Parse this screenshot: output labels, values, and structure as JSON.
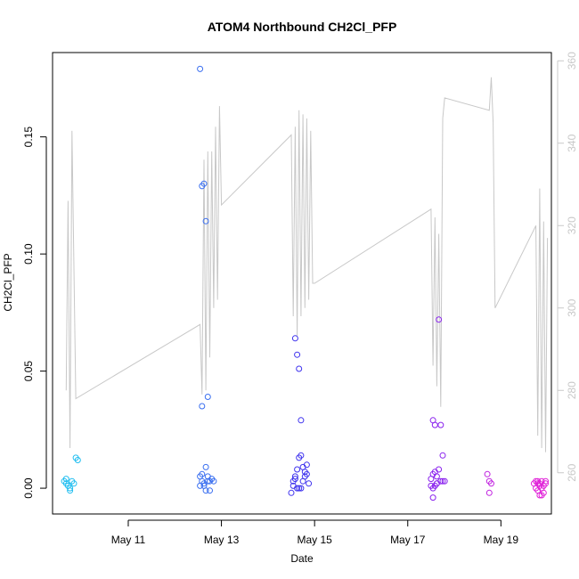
{
  "chart_data": {
    "type": "scatter",
    "title": "ATOM4 Northbound CH2Cl_PFP",
    "xlabel": "Date",
    "ylabel": "CH2Cl_PFP",
    "xlim": [
      "2016-05-09 09:00",
      "2016-05-20 02:00"
    ],
    "ylim": [
      -0.011,
      0.186
    ],
    "y2lim": [
      250,
      362
    ],
    "grid": false,
    "legend": "none",
    "x_ticks": [
      {
        "date": "2016-05-11 00:00",
        "label": "May 11"
      },
      {
        "date": "2016-05-13 00:00",
        "label": "May 13"
      },
      {
        "date": "2016-05-15 00:00",
        "label": "May 15"
      },
      {
        "date": "2016-05-17 00:00",
        "label": "May 17"
      },
      {
        "date": "2016-05-19 00:00",
        "label": "May 19"
      }
    ],
    "y_ticks": [
      {
        "value": 0.0,
        "label": "0.00"
      },
      {
        "value": 0.05,
        "label": "0.05"
      },
      {
        "value": 0.1,
        "label": "0.10"
      },
      {
        "value": 0.15,
        "label": "0.15"
      }
    ],
    "y2_ticks": [
      {
        "value": 260,
        "label": "260"
      },
      {
        "value": 280,
        "label": "280"
      },
      {
        "value": 300,
        "label": "300"
      },
      {
        "value": 320,
        "label": "320"
      },
      {
        "value": 340,
        "label": "340"
      },
      {
        "value": 360,
        "label": "360"
      }
    ],
    "colors": {
      "secondary_line": "#c8c8c8",
      "right_axis": "#c8c8c8",
      "color_scale": [
        "#1ebdf0",
        "#3a6ff0",
        "#3f33ee",
        "#8a22ee",
        "#c020e0",
        "#e020d8"
      ]
    },
    "secondary_series": {
      "axis": "right",
      "points": [
        [
          "2016-05-09 16:00",
          280
        ],
        [
          "2016-05-09 17:00",
          326
        ],
        [
          "2016-05-09 18:00",
          266
        ],
        [
          "2016-05-09 19:00",
          343
        ],
        [
          "2016-05-09 21:00",
          278
        ],
        [
          "2016-05-12 13:00",
          296
        ],
        [
          "2016-05-12 14:00",
          279
        ],
        [
          "2016-05-12 15:00",
          336
        ],
        [
          "2016-05-12 16:00",
          280
        ],
        [
          "2016-05-12 17:00",
          338
        ],
        [
          "2016-05-12 18:00",
          288
        ],
        [
          "2016-05-12 19:00",
          338
        ],
        [
          "2016-05-12 20:00",
          300
        ],
        [
          "2016-05-12 21:00",
          344
        ],
        [
          "2016-05-12 22:00",
          302
        ],
        [
          "2016-05-12 23:00",
          349
        ],
        [
          "2016-05-13 00:00",
          325
        ],
        [
          "2016-05-14 12:00",
          342
        ],
        [
          "2016-05-14 13:00",
          298
        ],
        [
          "2016-05-14 14:00",
          344
        ],
        [
          "2016-05-14 15:00",
          293
        ],
        [
          "2016-05-14 16:00",
          348
        ],
        [
          "2016-05-14 17:00",
          298
        ],
        [
          "2016-05-14 18:00",
          347
        ],
        [
          "2016-05-14 19:00",
          300
        ],
        [
          "2016-05-14 20:00",
          346
        ],
        [
          "2016-05-14 21:00",
          302
        ],
        [
          "2016-05-14 22:00",
          343
        ],
        [
          "2016-05-14 23:00",
          306
        ],
        [
          "2016-05-15 00:00",
          306
        ],
        [
          "2016-05-17 12:00",
          324
        ],
        [
          "2016-05-17 13:00",
          286
        ],
        [
          "2016-05-17 14:00",
          322
        ],
        [
          "2016-05-17 15:00",
          281
        ],
        [
          "2016-05-17 16:00",
          318
        ],
        [
          "2016-05-17 17:00",
          276
        ],
        [
          "2016-05-17 18:00",
          346
        ],
        [
          "2016-05-17 19:00",
          351
        ],
        [
          "2016-05-18 18:00",
          348
        ],
        [
          "2016-05-18 19:00",
          356
        ],
        [
          "2016-05-18 20:00",
          345
        ],
        [
          "2016-05-18 21:00",
          300
        ],
        [
          "2016-05-19 18:00",
          320
        ],
        [
          "2016-05-19 19:00",
          269
        ],
        [
          "2016-05-19 20:00",
          329
        ],
        [
          "2016-05-19 21:00",
          266
        ],
        [
          "2016-05-19 22:00",
          321
        ],
        [
          "2016-05-19 23:00",
          265
        ],
        [
          "2016-05-20 00:00",
          317
        ]
      ]
    },
    "series": [
      {
        "values": [
          [
            "2016-05-09 15:00",
            0.003
          ],
          [
            "2016-05-09 16:00",
            0.002
          ],
          [
            "2016-05-09 17:00",
            0.001
          ],
          [
            "2016-05-09 18:00",
            -0.001
          ],
          [
            "2016-05-09 19:00",
            0.003
          ],
          [
            "2016-05-09 20:00",
            0.002
          ],
          [
            "2016-05-09 21:00",
            0.013
          ],
          [
            "2016-05-09 22:00",
            0.012
          ],
          [
            "2016-05-09 16:00",
            0.004
          ],
          [
            "2016-05-09 18:00",
            0.0
          ]
        ]
      },
      {
        "values": [
          [
            "2016-05-12 13:00",
            0.179
          ],
          [
            "2016-05-12 14:00",
            0.129
          ],
          [
            "2016-05-12 15:00",
            0.13
          ],
          [
            "2016-05-12 16:00",
            0.114
          ],
          [
            "2016-05-12 14:00",
            0.035
          ],
          [
            "2016-05-12 17:00",
            0.039
          ],
          [
            "2016-05-12 13:00",
            0.005
          ],
          [
            "2016-05-12 14:00",
            0.003
          ],
          [
            "2016-05-12 15:00",
            0.002
          ],
          [
            "2016-05-12 16:00",
            0.009
          ],
          [
            "2016-05-12 17:00",
            0.005
          ],
          [
            "2016-05-12 18:00",
            0.003
          ],
          [
            "2016-05-12 19:00",
            0.004
          ],
          [
            "2016-05-12 15:00",
            0.001
          ],
          [
            "2016-05-12 16:00",
            -0.001
          ],
          [
            "2016-05-12 18:00",
            -0.001
          ],
          [
            "2016-05-12 13:00",
            0.001
          ],
          [
            "2016-05-12 20:00",
            0.003
          ],
          [
            "2016-05-12 14:00",
            0.006
          ],
          [
            "2016-05-12 17:00",
            0.003
          ]
        ]
      },
      {
        "values": [
          [
            "2016-05-14 14:00",
            0.064
          ],
          [
            "2016-05-14 15:00",
            0.057
          ],
          [
            "2016-05-14 16:00",
            0.051
          ],
          [
            "2016-05-14 17:00",
            0.029
          ],
          [
            "2016-05-14 13:00",
            0.003
          ],
          [
            "2016-05-14 14:00",
            0.005
          ],
          [
            "2016-05-14 15:00",
            0.008
          ],
          [
            "2016-05-14 16:00",
            0.013
          ],
          [
            "2016-05-14 17:00",
            0.014
          ],
          [
            "2016-05-14 18:00",
            0.009
          ],
          [
            "2016-05-14 19:00",
            0.007
          ],
          [
            "2016-05-14 20:00",
            0.01
          ],
          [
            "2016-05-14 15:00",
            0.0
          ],
          [
            "2016-05-14 16:00",
            0.0
          ],
          [
            "2016-05-14 17:00",
            0.0
          ],
          [
            "2016-05-14 18:00",
            0.003
          ],
          [
            "2016-05-14 19:00",
            0.005
          ],
          [
            "2016-05-14 12:00",
            -0.002
          ],
          [
            "2016-05-14 13:00",
            0.001
          ],
          [
            "2016-05-14 21:00",
            0.002
          ],
          [
            "2016-05-14 14:00",
            0.004
          ],
          [
            "2016-05-14 20:00",
            0.006
          ]
        ]
      },
      {
        "values": [
          [
            "2016-05-17 16:00",
            0.072
          ],
          [
            "2016-05-17 13:00",
            0.029
          ],
          [
            "2016-05-17 14:00",
            0.027
          ],
          [
            "2016-05-17 17:00",
            0.027
          ],
          [
            "2016-05-17 18:00",
            0.014
          ],
          [
            "2016-05-17 12:00",
            0.004
          ],
          [
            "2016-05-17 13:00",
            0.006
          ],
          [
            "2016-05-17 14:00",
            0.007
          ],
          [
            "2016-05-17 15:00",
            0.005
          ],
          [
            "2016-05-17 16:00",
            0.008
          ],
          [
            "2016-05-17 17:00",
            0.003
          ],
          [
            "2016-05-17 18:00",
            0.003
          ],
          [
            "2016-05-17 19:00",
            0.003
          ],
          [
            "2016-05-17 12:00",
            0.001
          ],
          [
            "2016-05-17 13:00",
            0.0
          ],
          [
            "2016-05-17 14:00",
            0.001
          ],
          [
            "2016-05-17 15:00",
            0.002
          ],
          [
            "2016-05-17 13:00",
            -0.004
          ],
          [
            "2016-05-17 15:00",
            0.002
          ]
        ]
      },
      {
        "values": [
          [
            "2016-05-18 17:00",
            0.006
          ],
          [
            "2016-05-18 18:00",
            0.003
          ],
          [
            "2016-05-18 19:00",
            0.002
          ],
          [
            "2016-05-18 18:00",
            -0.002
          ]
        ]
      },
      {
        "values": [
          [
            "2016-05-19 17:00",
            0.002
          ],
          [
            "2016-05-19 18:00",
            0.003
          ],
          [
            "2016-05-19 19:00",
            0.003
          ],
          [
            "2016-05-19 20:00",
            0.002
          ],
          [
            "2016-05-19 21:00",
            0.003
          ],
          [
            "2016-05-19 22:00",
            0.001
          ],
          [
            "2016-05-19 23:00",
            0.002
          ],
          [
            "2016-05-19 18:00",
            0.0
          ],
          [
            "2016-05-19 19:00",
            -0.001
          ],
          [
            "2016-05-19 20:00",
            -0.003
          ],
          [
            "2016-05-19 21:00",
            -0.003
          ],
          [
            "2016-05-19 22:00",
            -0.002
          ],
          [
            "2016-05-19 23:00",
            0.003
          ],
          [
            "2016-05-19 19:00",
            0.002
          ],
          [
            "2016-05-19 20:00",
            0.001
          ],
          [
            "2016-05-19 21:00",
            0.0
          ]
        ]
      }
    ]
  }
}
